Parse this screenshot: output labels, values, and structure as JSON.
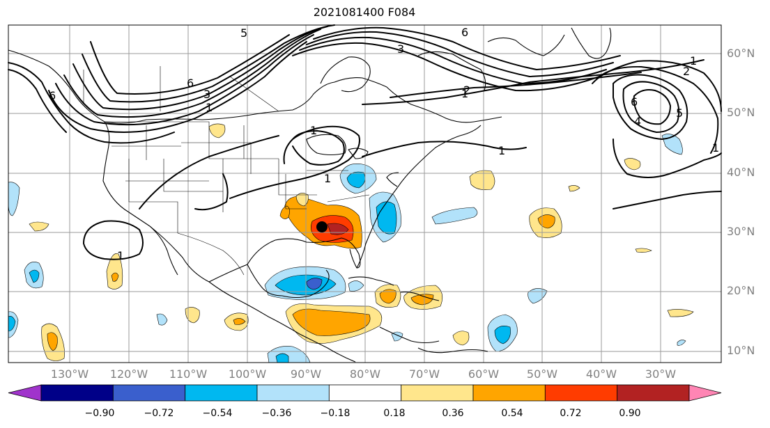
{
  "title": "2021081400 F084",
  "lat_labels": [
    "60°N",
    "50°N",
    "40°N",
    "30°N",
    "20°N",
    "10°N"
  ],
  "lon_labels": [
    "130°W",
    "120°W",
    "110°W",
    "100°W",
    "90°W",
    "80°W",
    "70°W",
    "60°W",
    "50°W",
    "40°W",
    "30°W"
  ],
  "contour_labels": [
    "5",
    "6",
    "3",
    "6",
    "1",
    "6",
    "3",
    "1",
    "1",
    "2",
    "1",
    "2",
    "6",
    "5",
    "4",
    "1",
    "1",
    "1",
    "1"
  ],
  "colorbar": {
    "ticks": [
      "−0.90",
      "−0.72",
      "−0.54",
      "−0.36",
      "−0.18",
      "0.18",
      "0.36",
      "0.54",
      "0.72",
      "0.90"
    ],
    "colors": [
      "#a033cc",
      "#000088",
      "#3a5fcd",
      "#00b8f0",
      "#b2e2fa",
      "#ffffff",
      "#ffe68c",
      "#ffa500",
      "#ff3c00",
      "#b22222",
      "#ff85b4"
    ]
  },
  "map_legend": {
    "shading": "filled anomaly field with color scale from −0.90 to 0.90",
    "contours": "black labeled contours",
    "marker": "black dot over southeastern United States"
  }
}
